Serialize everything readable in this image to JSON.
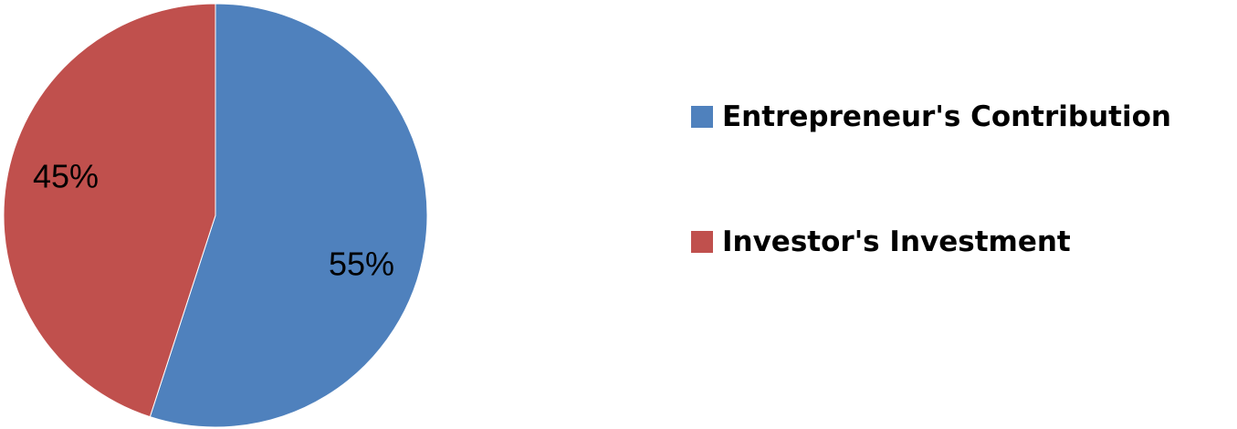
{
  "chart_data": {
    "type": "pie",
    "slices": [
      {
        "label": "Entrepreneur's Contribution",
        "value": 55,
        "display": "55%",
        "color": "#4F81BD"
      },
      {
        "label": "Investor's Investment",
        "value": 45,
        "display": "45%",
        "color": "#C0504D"
      }
    ],
    "start_angle_deg": 0,
    "direction": "clockwise",
    "legend_position": "right",
    "data_labels": "percent"
  }
}
